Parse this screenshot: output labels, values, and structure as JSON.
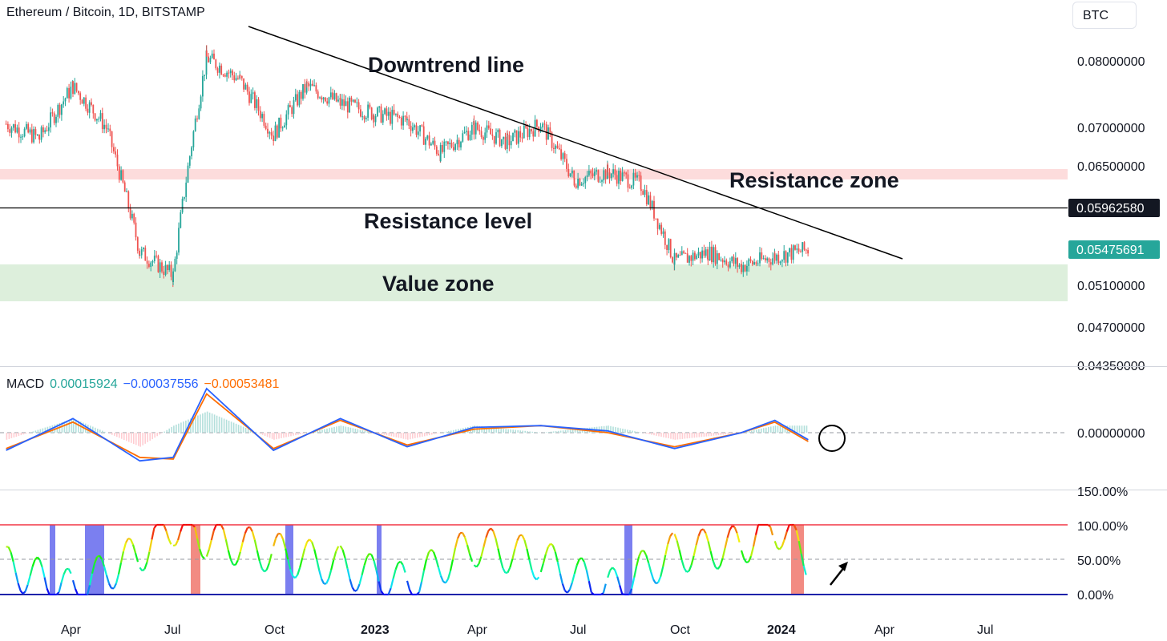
{
  "header": {
    "symbol_title": "Ethereum / Bitcoin, 1D, BITSTAMP",
    "currency_button": "BTC"
  },
  "annotations": {
    "downtrend": "Downtrend line",
    "resistance_zone": "Resistance zone",
    "resistance_level": "Resistance level",
    "value_zone": "Value zone"
  },
  "price_axis": {
    "ticks": [
      "0.08000000",
      "0.07000000",
      "0.06500000",
      "0.05100000",
      "0.04700000",
      "0.04350000"
    ],
    "resistance_label": "0.05962580",
    "current_label": "0.05475691"
  },
  "macd": {
    "name": "MACD",
    "histogram": "0.00015924",
    "macd_line": "−0.00037556",
    "signal": "−0.00053481",
    "zero_label": "0.00000000"
  },
  "stoch": {
    "ticks": [
      "150.00%",
      "100.00%",
      "50.00%",
      "0.00%"
    ]
  },
  "time_axis": {
    "labels": [
      {
        "text": "Apr",
        "bold": false
      },
      {
        "text": "Jul",
        "bold": false
      },
      {
        "text": "Oct",
        "bold": false
      },
      {
        "text": "2023",
        "bold": true
      },
      {
        "text": "Apr",
        "bold": false
      },
      {
        "text": "Jul",
        "bold": false
      },
      {
        "text": "Oct",
        "bold": false
      },
      {
        "text": "2024",
        "bold": true
      },
      {
        "text": "Apr",
        "bold": false
      },
      {
        "text": "Jul",
        "bold": false
      }
    ]
  },
  "colors": {
    "up": "#26a69a",
    "down": "#ef5350",
    "resistance_zone": "#fddcdc",
    "value_zone": "#ddefdc",
    "macd_line": "#2962ff",
    "signal_line": "#ff6d00",
    "label_bg": "#131722",
    "current_bg": "#26a69a"
  },
  "chart_data": {
    "type": "candlestick",
    "pair": "ETH/BTC",
    "timeframe": "1D",
    "exchange": "BITSTAMP",
    "price_series": {
      "dates": [
        "2022-02",
        "2022-03",
        "2022-04",
        "2022-05",
        "2022-06",
        "2022-07",
        "2022-08",
        "2022-09",
        "2022-10",
        "2022-11",
        "2022-12",
        "2023-01",
        "2023-02",
        "2023-03",
        "2023-04",
        "2023-05",
        "2023-06",
        "2023-07",
        "2023-08",
        "2023-09",
        "2023-10",
        "2023-11",
        "2023-12",
        "2024-01",
        "2024-02"
      ],
      "close": [
        0.0705,
        0.0685,
        0.076,
        0.07,
        0.0545,
        0.052,
        0.0805,
        0.077,
        0.069,
        0.076,
        0.0735,
        0.072,
        0.071,
        0.0665,
        0.07,
        0.068,
        0.0705,
        0.063,
        0.064,
        0.0625,
        0.0535,
        0.0545,
        0.053,
        0.054,
        0.0548
      ]
    },
    "resistance_level": 0.0596258,
    "current_price": 0.05475691,
    "resistance_zone": [
      0.0636,
      0.065
    ],
    "value_zone": [
      0.05,
      0.0522
    ],
    "downtrend_line": {
      "start": [
        "2022-09",
        0.0855
      ],
      "end": [
        "2024-03",
        0.055
      ]
    },
    "macd": {
      "dates": [
        "2022-02",
        "2022-04",
        "2022-06",
        "2022-07",
        "2022-08",
        "2022-10",
        "2022-12",
        "2023-02",
        "2023-04",
        "2023-06",
        "2023-08",
        "2023-10",
        "2023-12",
        "2024-01",
        "2024-02"
      ],
      "macd": [
        -0.001,
        0.0008,
        -0.0016,
        -0.0014,
        0.0025,
        -0.001,
        0.0008,
        -0.0008,
        0.0003,
        0.0004,
        0.0001,
        -0.0009,
        0.0,
        0.0007,
        -0.0004
      ],
      "signal": [
        -0.0009,
        0.0006,
        -0.0014,
        -0.0015,
        0.0022,
        -0.0009,
        0.0007,
        -0.0007,
        0.0002,
        0.0004,
        0.0,
        -0.0008,
        0.0,
        0.0006,
        -0.0005
      ],
      "histogram_last": 0.00015924,
      "macd_last": -0.00037556,
      "signal_last": -0.00053481
    },
    "stoch_rsi": {
      "dates": [
        "2022-02",
        "2022-04",
        "2022-06",
        "2022-07",
        "2022-08",
        "2022-10",
        "2022-12",
        "2023-02",
        "2023-04",
        "2023-06",
        "2023-08",
        "2023-10",
        "2023-12",
        "2024-01",
        "2024-02"
      ],
      "values": [
        40,
        5,
        60,
        100,
        80,
        60,
        40,
        15,
        70,
        50,
        5,
        60,
        70,
        100,
        52
      ],
      "upper": 100,
      "lower": 0,
      "mid": 50,
      "ylim": [
        0,
        150
      ]
    }
  }
}
